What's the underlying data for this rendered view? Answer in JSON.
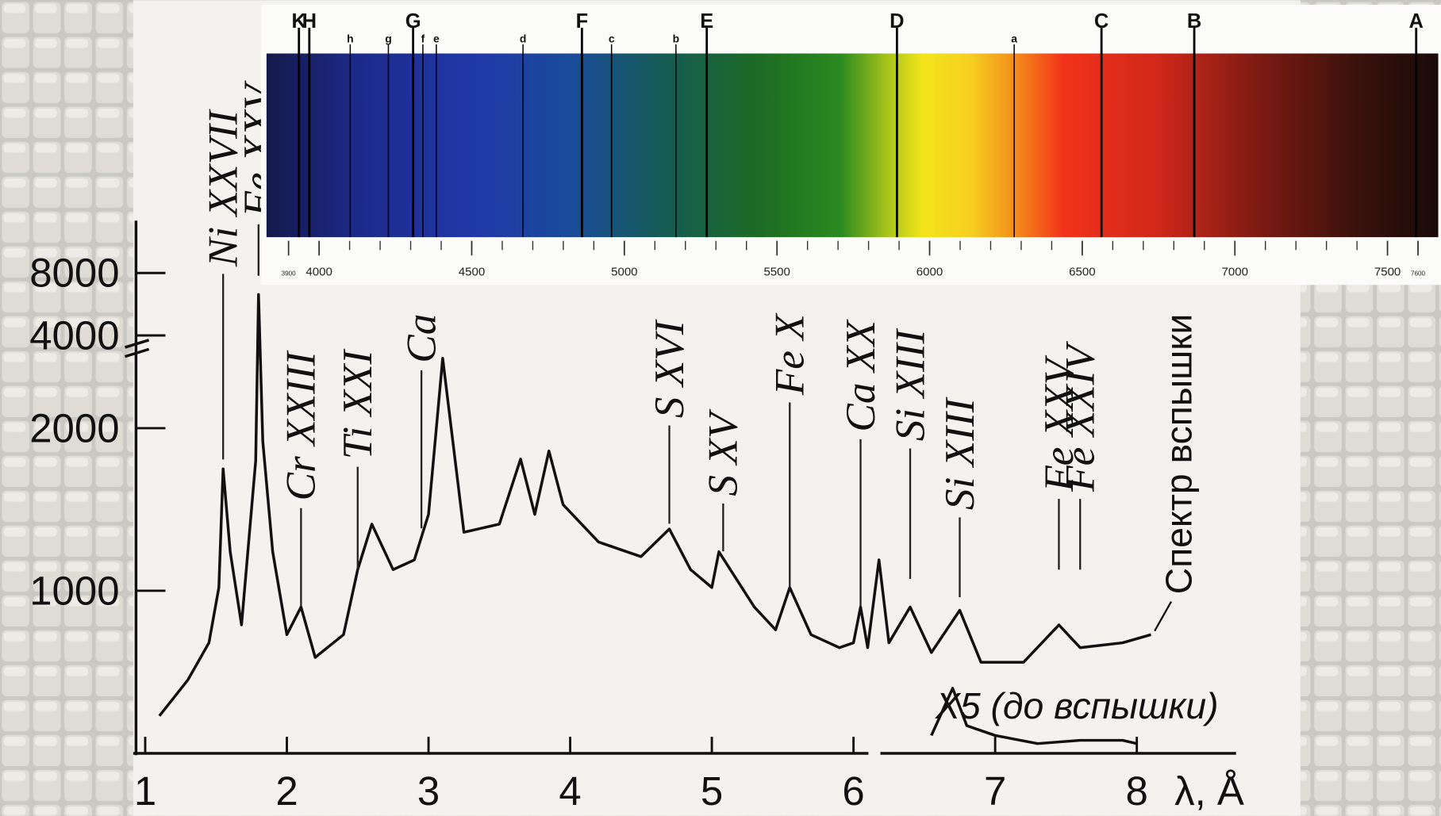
{
  "chart_data": [
    {
      "type": "spectrum",
      "categories": [
        "K",
        "H",
        "h",
        "g",
        "G",
        "f",
        "e",
        "d",
        "F",
        "c",
        "b",
        "E",
        "D",
        "a",
        "C",
        "B",
        "A"
      ],
      "x": [
        3934,
        3968,
        4102,
        4227,
        4308,
        4340,
        4384,
        4668,
        4861,
        4958,
        5169,
        5270,
        5893,
        6277,
        6563,
        6867,
        7594
      ],
      "xlim": [
        3900,
        7600
      ],
      "xticks": [
        3900,
        4000,
        4500,
        5000,
        5500,
        6000,
        6500,
        7000,
        7500,
        7600
      ]
    },
    {
      "type": "line",
      "xlabel": "λ, Å",
      "xlim": [
        0.9,
        8.4
      ],
      "xticks": [
        1,
        2,
        3,
        4,
        5,
        6,
        7,
        8
      ],
      "ylim": [
        0,
        8000
      ],
      "y_break": [
        2500,
        4000
      ],
      "yticks": [
        1000,
        2000,
        4000,
        8000
      ],
      "series": [
        {
          "name": "Спектр вспышки",
          "color": "#111111",
          "x": [
            1.1,
            1.3,
            1.45,
            1.52,
            1.55,
            1.6,
            1.68,
            1.78,
            1.8,
            1.83,
            1.9,
            2.0,
            2.1,
            2.2,
            2.4,
            2.5,
            2.6,
            2.75,
            2.9,
            3.0,
            3.1,
            3.25,
            3.5,
            3.65,
            3.75,
            3.85,
            3.95,
            4.2,
            4.5,
            4.7,
            4.85,
            5.0,
            5.05,
            5.3,
            5.45,
            5.55,
            5.7,
            5.9,
            6.0,
            6.05,
            6.1,
            6.18,
            6.25,
            6.4,
            6.55,
            6.75,
            6.9,
            7.2,
            7.45,
            7.6,
            7.9,
            8.1
          ],
          "values": [
            230,
            450,
            680,
            1020,
            1750,
            1240,
            790,
            1800,
            6300,
            1920,
            1240,
            730,
            900,
            590,
            730,
            1130,
            1410,
            1130,
            1190,
            1470,
            2430,
            1360,
            1410,
            1810,
            1470,
            1860,
            1530,
            1300,
            1210,
            1380,
            1130,
            1020,
            1240,
            900,
            760,
            1020,
            730,
            650,
            680,
            900,
            650,
            1190,
            680,
            900,
            620,
            880,
            560,
            560,
            790,
            650,
            680,
            730
          ]
        },
        {
          "name": "X5 (до вспышки)",
          "color": "#111111",
          "x": [
            6.55,
            6.7,
            6.8,
            7.0,
            7.3,
            7.6,
            7.9,
            8.0
          ],
          "values": [
            110,
            400,
            170,
            110,
            60,
            80,
            80,
            60
          ]
        }
      ],
      "annotations": [
        {
          "text": "Ni XXVII",
          "x": 1.55
        },
        {
          "text": "Fe XXV",
          "x": 1.8
        },
        {
          "text": "Cr XXIII",
          "x": 2.1
        },
        {
          "text": "Ti XXI",
          "x": 2.5
        },
        {
          "text": "Ca",
          "x": 2.95
        },
        {
          "text": "S XVI",
          "x": 4.7
        },
        {
          "text": "S XV",
          "x": 5.08
        },
        {
          "text": "Fe X",
          "x": 5.55
        },
        {
          "text": "Ca XX",
          "x": 6.05
        },
        {
          "text": "Si XIII",
          "x": 6.4
        },
        {
          "text": "Si XIII",
          "x": 6.75
        },
        {
          "text": "Fe XXV",
          "x": 7.45
        },
        {
          "text": "Fe XXIV",
          "x": 7.6
        }
      ]
    }
  ]
}
